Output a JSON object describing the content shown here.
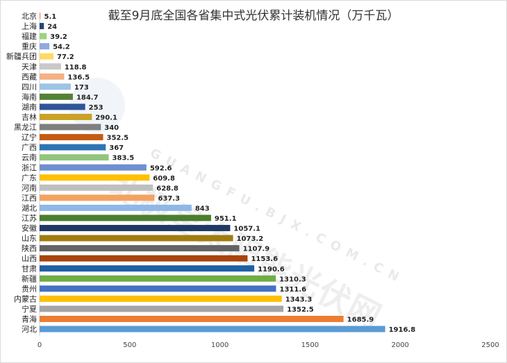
{
  "chart_data": {
    "type": "bar",
    "orientation": "horizontal",
    "title": "截至9月底全国各省集中式光伏累计装机情况（万千瓦）",
    "categories": [
      "北京",
      "上海",
      "福建",
      "重庆",
      "新疆兵团",
      "天津",
      "西藏",
      "四川",
      "海南",
      "湖南",
      "吉林",
      "黑龙江",
      "辽宁",
      "广西",
      "云南",
      "浙江",
      "广东",
      "河南",
      "江西",
      "湖北",
      "江苏",
      "安徽",
      "山东",
      "陕西",
      "山西",
      "甘肃",
      "新疆",
      "贵州",
      "内蒙古",
      "宁夏",
      "青海",
      "河北"
    ],
    "values": [
      5.1,
      24,
      39.2,
      54.2,
      77.2,
      118.8,
      136.5,
      173,
      184.7,
      253,
      290.1,
      340,
      352.5,
      367,
      383.5,
      592.6,
      609.8,
      628.8,
      637.3,
      843,
      951.1,
      1057.1,
      1073.2,
      1107.9,
      1153.6,
      1190.6,
      1310.3,
      1311.6,
      1343.3,
      1352.5,
      1685.9,
      1916.8
    ],
    "value_labels": [
      "5.1",
      "24",
      "39.2",
      "54.2",
      "77.2",
      "118.8",
      "136.5",
      "173",
      "184.7",
      "253",
      "290.1",
      "340",
      "352.5",
      "367",
      "383.5",
      "592.6",
      "609.8",
      "628.8",
      "637.3",
      "843",
      "951.1",
      "1057.1",
      "1073.2",
      "1107.9",
      "1153.6",
      "1190.6",
      "1310.3",
      "1311.6",
      "1343.3",
      "1352.5",
      "1685.9",
      "1916.8"
    ],
    "colors": [
      "#f4a582",
      "#264478",
      "#9ed37d",
      "#8faadc",
      "#ffd966",
      "#c9c9c9",
      "#f4b183",
      "#9dc3e6",
      "#548235",
      "#2f5597",
      "#c9a227",
      "#7f7f7f",
      "#c55a11",
      "#2e75b6",
      "#93c47d",
      "#6f8fcf",
      "#ffc000",
      "#bfbfbf",
      "#f4a261",
      "#8fb8e8",
      "#4b7d2e",
      "#203864",
      "#a07c10",
      "#636363",
      "#a9430d",
      "#1f5fa6",
      "#70ad47",
      "#4472c4",
      "#ffc000",
      "#a5a5a5",
      "#ed7d31",
      "#5b9bd5"
    ],
    "xlim": [
      0,
      2500
    ],
    "xticks": [
      "0",
      "500",
      "1000",
      "1500",
      "2000",
      "2500"
    ],
    "grid": false,
    "legend": "none"
  },
  "watermark": {
    "main": "北极星太阳能光伏网",
    "sub": "GUANGFU.BJX.COM.CN"
  }
}
